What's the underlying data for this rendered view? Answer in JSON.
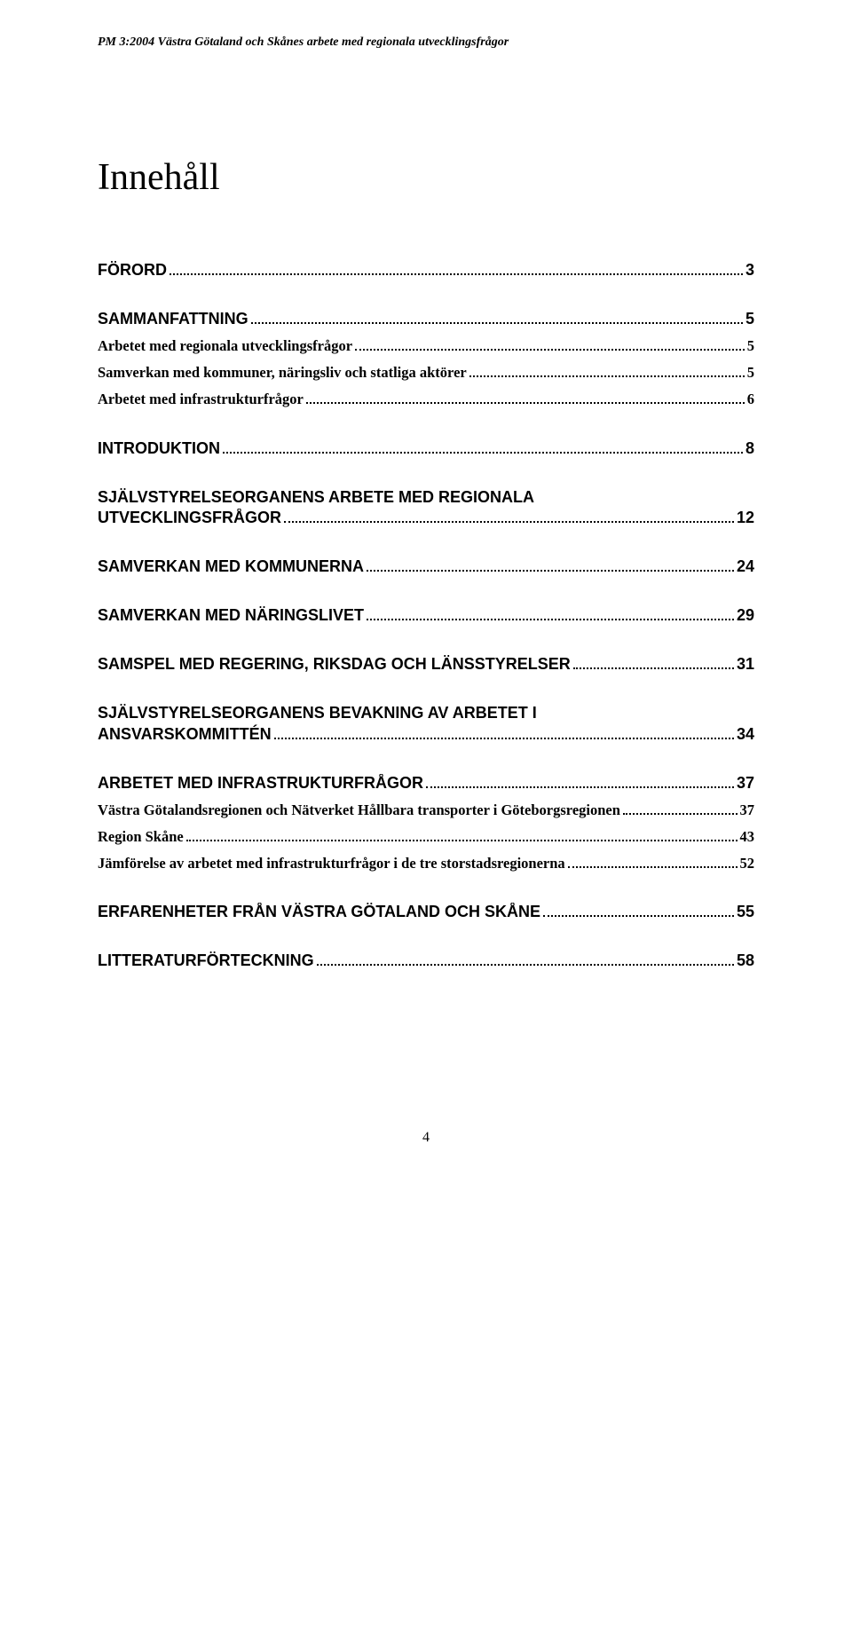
{
  "header": {
    "running_title": "PM 3:2004 Västra Götaland och Skånes arbete med regionala utvecklingsfrågor"
  },
  "title": "Innehåll",
  "page_number": "4",
  "toc": [
    {
      "level": 1,
      "label": "FÖRORD",
      "page": "3"
    },
    {
      "level": 1,
      "label": "SAMMANFATTNING",
      "page": "5"
    },
    {
      "level": 2,
      "label": "Arbetet med regionala utvecklingsfrågor",
      "page": "5"
    },
    {
      "level": 2,
      "label": "Samverkan med kommuner, näringsliv och statliga aktörer",
      "page": "5"
    },
    {
      "level": 2,
      "label": "Arbetet med infrastrukturfrågor",
      "page": "6"
    },
    {
      "level": 1,
      "label": "INTRODUKTION",
      "page": "8"
    },
    {
      "level": 1,
      "label": "SJÄLVSTYRELSEORGANENS ARBETE MED REGIONALA UTVECKLINGSFRÅGOR",
      "page": "12",
      "wrap": true
    },
    {
      "level": 1,
      "label": "SAMVERKAN MED KOMMUNERNA",
      "page": "24"
    },
    {
      "level": 1,
      "label": "SAMVERKAN MED NÄRINGSLIVET",
      "page": "29"
    },
    {
      "level": 1,
      "label": "SAMSPEL MED REGERING, RIKSDAG OCH LÄNSSTYRELSER",
      "page": "31"
    },
    {
      "level": 1,
      "label": "SJÄLVSTYRELSEORGANENS BEVAKNING AV ARBETET I ANSVARSKOMMITTÉN",
      "page": "34",
      "wrap": true
    },
    {
      "level": 1,
      "label": "ARBETET MED INFRASTRUKTURFRÅGOR",
      "page": "37"
    },
    {
      "level": 2,
      "label": "Västra Götalandsregionen och Nätverket Hållbara transporter i Göteborgsregionen",
      "page": "37"
    },
    {
      "level": 2,
      "label": "Region Skåne",
      "page": "43"
    },
    {
      "level": 2,
      "label": "Jämförelse av arbetet med infrastrukturfrågor i de tre storstadsregionerna",
      "page": "52"
    },
    {
      "level": 1,
      "label": "ERFARENHETER FRÅN VÄSTRA GÖTALAND OCH SKÅNE",
      "page": "55"
    },
    {
      "level": 1,
      "label": "LITTERATURFÖRTECKNING",
      "page": "58"
    }
  ]
}
